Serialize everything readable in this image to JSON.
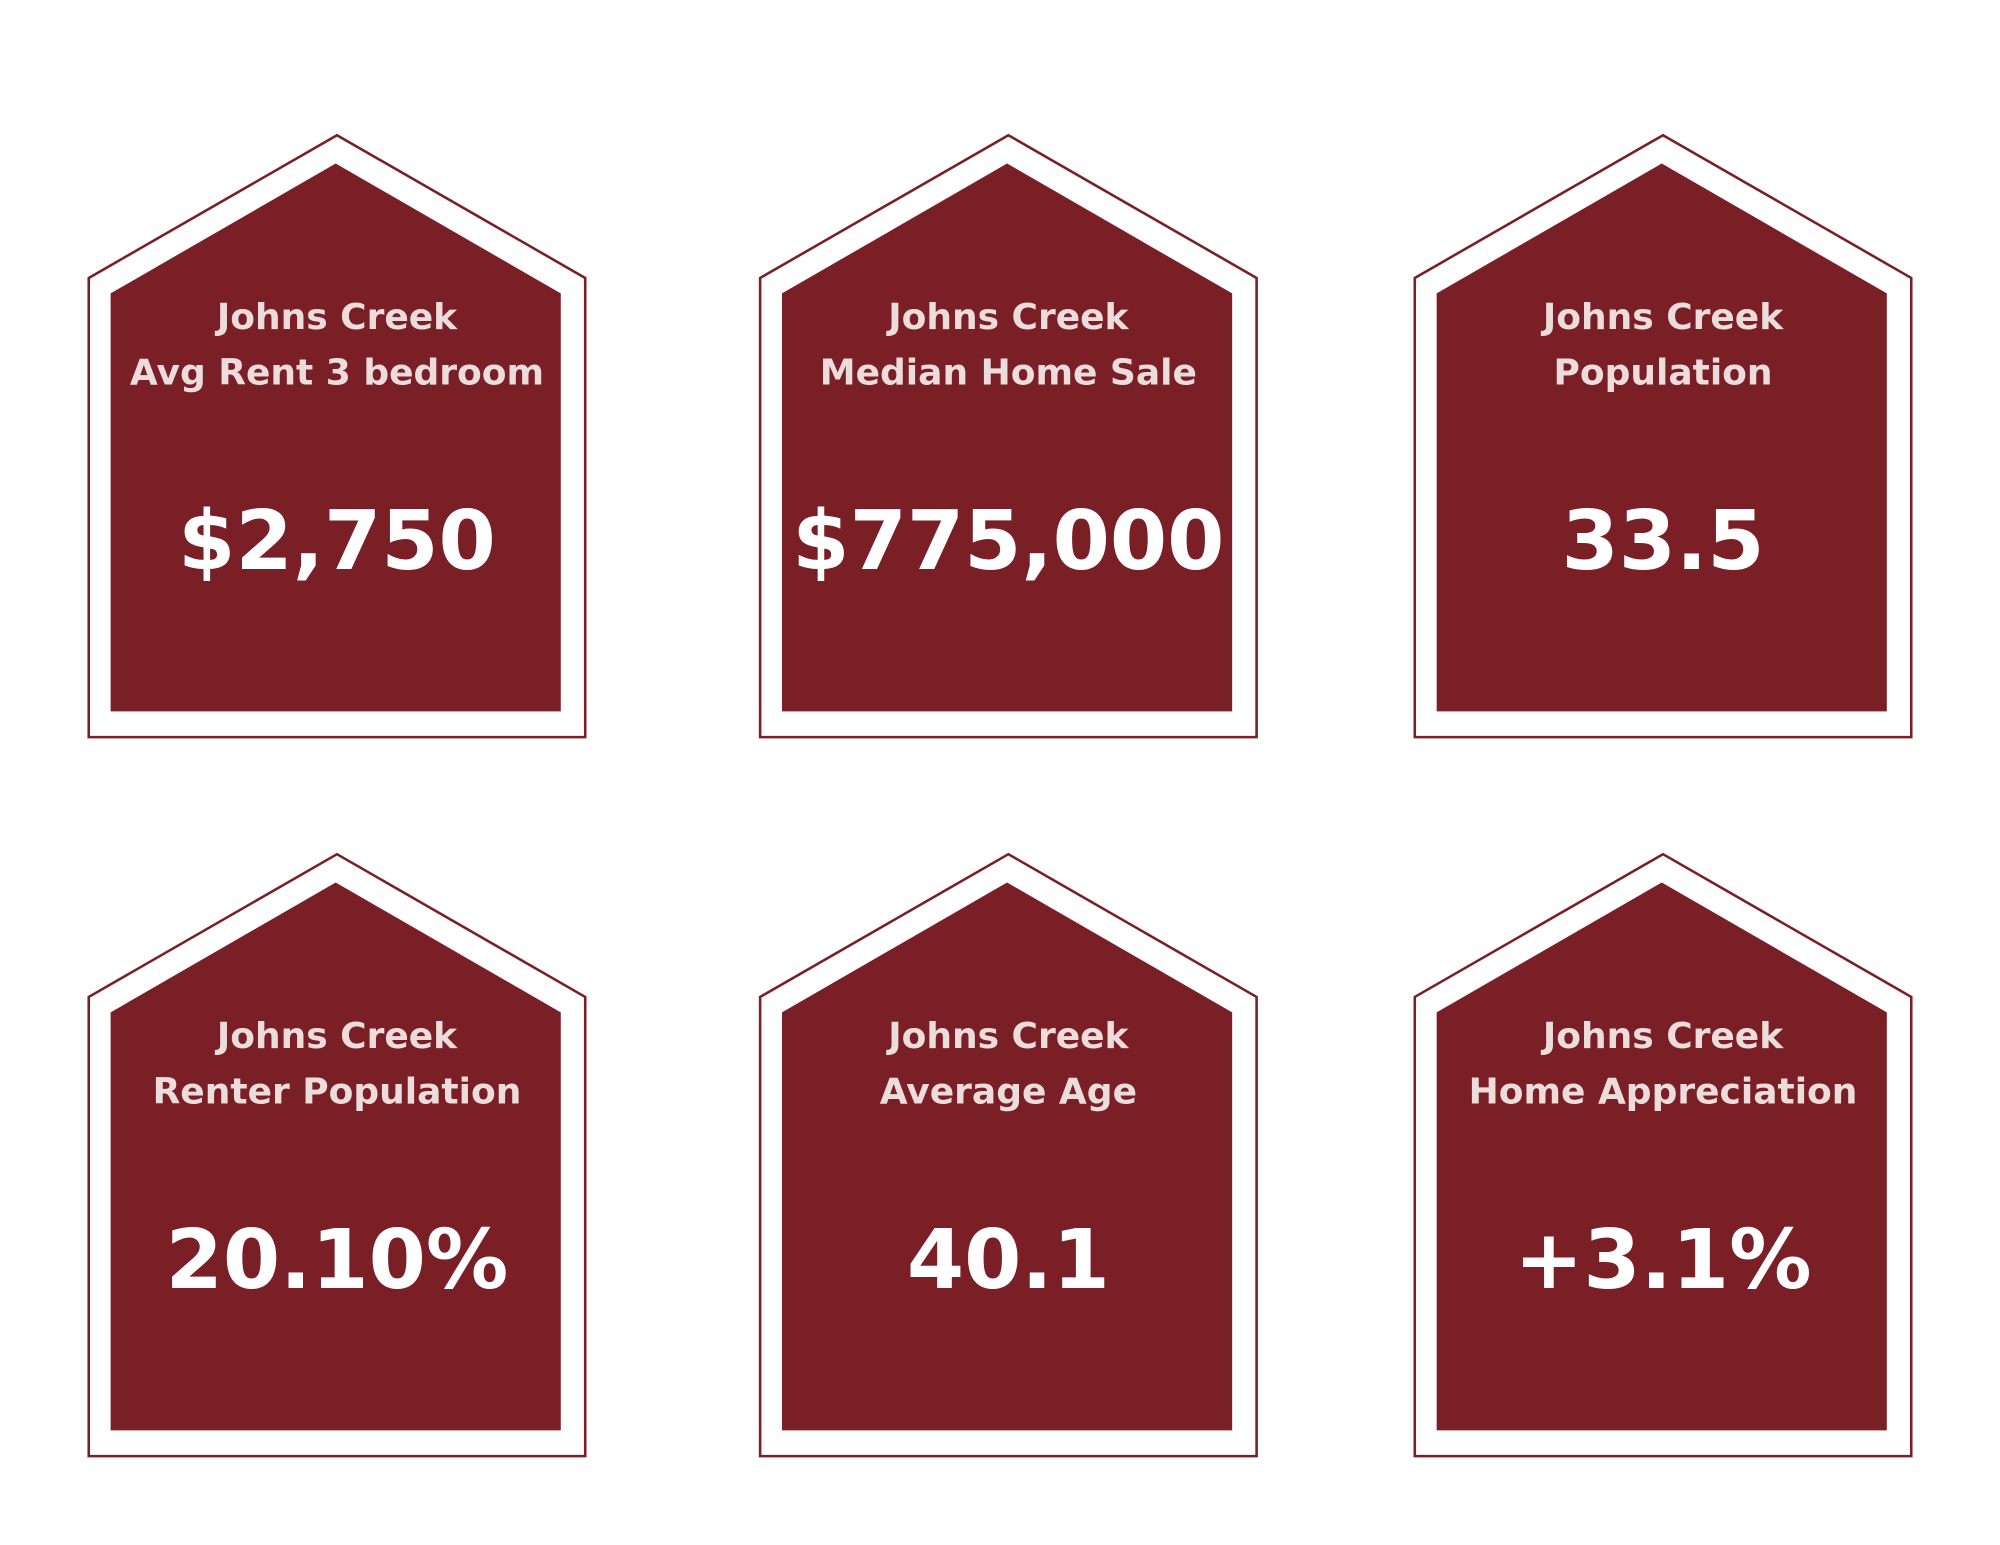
{
  "cards": [
    {
      "title": [
        "Johns Creek",
        "Avg Rent 3 bedroom"
      ],
      "value": "$2,750"
    },
    {
      "title": [
        "Johns Creek",
        "Median Home Sale"
      ],
      "value": "$775,000"
    },
    {
      "title": [
        "Johns Creek",
        "Population"
      ],
      "value": "33.5"
    },
    {
      "title": [
        "Johns Creek",
        "Renter Population"
      ],
      "value": "20.10%"
    },
    {
      "title": [
        "Johns Creek",
        "Average Age"
      ],
      "value": "40.1"
    },
    {
      "title": [
        "Johns Creek",
        "Home Appreciation"
      ],
      "value": "+3.1%"
    }
  ]
}
